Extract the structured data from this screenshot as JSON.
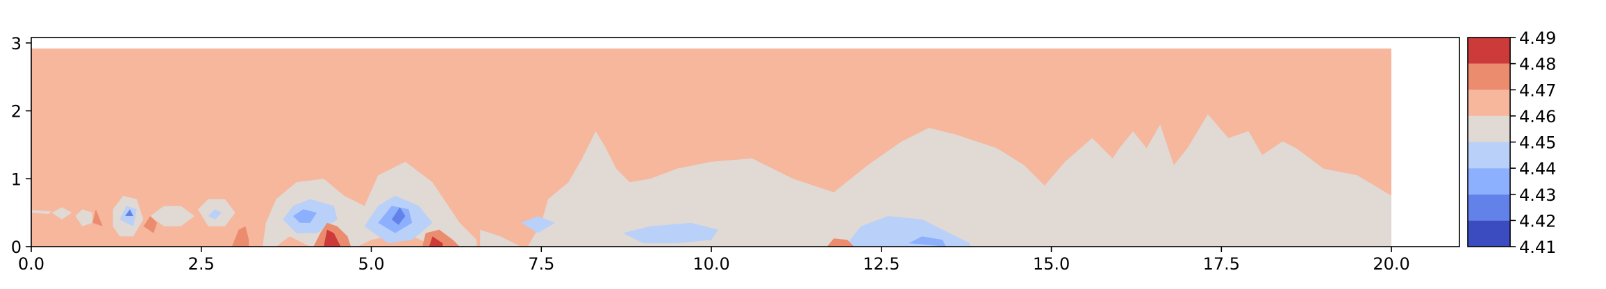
{
  "chart_data": {
    "type": "contour",
    "xlim": [
      0.0,
      21.0
    ],
    "ylim": [
      0.0,
      3.08
    ],
    "x_ticks": [
      "0.0",
      "2.5",
      "5.0",
      "7.5",
      "10.0",
      "12.5",
      "15.0",
      "17.5",
      "20.0"
    ],
    "x_tick_values": [
      0.0,
      2.5,
      5.0,
      7.5,
      10.0,
      12.5,
      15.0,
      17.5,
      20.0
    ],
    "y_ticks": [
      "0",
      "1",
      "2",
      "3"
    ],
    "y_tick_values": [
      0,
      1,
      2,
      3
    ],
    "domain": {
      "x": [
        0.0,
        20.0
      ],
      "y": [
        0.0,
        2.92
      ]
    },
    "colorbar": {
      "levels": [
        4.41,
        4.42,
        4.43,
        4.44,
        4.45,
        4.46,
        4.47,
        4.48,
        4.49
      ],
      "labels": [
        "4.41",
        "4.42",
        "4.43",
        "4.44",
        "4.45",
        "4.46",
        "4.47",
        "4.48",
        "4.49"
      ],
      "colors": [
        "#3b4cc0",
        "#6282ea",
        "#8db0fe",
        "#b9d0f9",
        "#e0d9d4",
        "#f6b79c",
        "#ec8c6e",
        "#cc3a3a"
      ]
    },
    "background_band": "4.46-4.47",
    "regions": [
      {
        "band": "4.45-4.46",
        "polygon": [
          [
            7.3,
            0
          ],
          [
            7.5,
            0.35
          ],
          [
            7.6,
            0.7
          ],
          [
            7.9,
            0.95
          ],
          [
            8.1,
            1.3
          ],
          [
            8.3,
            1.7
          ],
          [
            8.45,
            1.45
          ],
          [
            8.6,
            1.15
          ],
          [
            8.8,
            0.95
          ],
          [
            9.1,
            1.0
          ],
          [
            9.5,
            1.15
          ],
          [
            10.0,
            1.25
          ],
          [
            10.6,
            1.3
          ],
          [
            11.2,
            1.0
          ],
          [
            11.8,
            0.8
          ],
          [
            12.3,
            1.2
          ],
          [
            12.8,
            1.55
          ],
          [
            13.2,
            1.75
          ],
          [
            13.6,
            1.65
          ],
          [
            14.2,
            1.45
          ],
          [
            14.6,
            1.2
          ],
          [
            14.9,
            0.9
          ],
          [
            15.2,
            1.25
          ],
          [
            15.6,
            1.6
          ],
          [
            15.9,
            1.3
          ],
          [
            16.0,
            1.45
          ],
          [
            16.2,
            1.7
          ],
          [
            16.4,
            1.45
          ],
          [
            16.6,
            1.8
          ],
          [
            16.8,
            1.2
          ],
          [
            17.0,
            1.45
          ],
          [
            17.3,
            1.95
          ],
          [
            17.6,
            1.6
          ],
          [
            17.9,
            1.7
          ],
          [
            18.1,
            1.35
          ],
          [
            18.4,
            1.55
          ],
          [
            18.6,
            1.45
          ],
          [
            19.0,
            1.15
          ],
          [
            19.5,
            1.05
          ],
          [
            20.0,
            0.75
          ],
          [
            20.0,
            0
          ]
        ]
      },
      {
        "band": "4.45-4.46",
        "polygon": [
          [
            6.6,
            0
          ],
          [
            6.6,
            0.25
          ],
          [
            6.9,
            0.15
          ],
          [
            7.1,
            0.05
          ],
          [
            7.2,
            0
          ]
        ]
      },
      {
        "band": "4.45-4.46",
        "polygon": [
          [
            3.4,
            0
          ],
          [
            3.45,
            0.35
          ],
          [
            3.6,
            0.7
          ],
          [
            3.9,
            0.95
          ],
          [
            4.3,
            1.0
          ],
          [
            4.6,
            0.75
          ],
          [
            4.9,
            0.6
          ],
          [
            5.1,
            1.05
          ],
          [
            5.5,
            1.25
          ],
          [
            5.9,
            0.95
          ],
          [
            6.3,
            0.35
          ],
          [
            6.55,
            0.1
          ],
          [
            6.55,
            0
          ],
          [
            5.95,
            0
          ],
          [
            5.5,
            0.2
          ],
          [
            5.0,
            0.1
          ],
          [
            4.8,
            0
          ],
          [
            4.1,
            0
          ],
          [
            3.8,
            0.15
          ],
          [
            3.6,
            0
          ]
        ]
      },
      {
        "band": "4.45-4.46",
        "polygon": [
          [
            1.2,
            0.3
          ],
          [
            1.3,
            0.15
          ],
          [
            1.5,
            0.15
          ],
          [
            1.65,
            0.4
          ],
          [
            1.55,
            0.7
          ],
          [
            1.35,
            0.75
          ],
          [
            1.2,
            0.55
          ]
        ]
      },
      {
        "band": "4.45-4.46",
        "polygon": [
          [
            1.75,
            0.45
          ],
          [
            1.95,
            0.6
          ],
          [
            2.2,
            0.6
          ],
          [
            2.4,
            0.45
          ],
          [
            2.2,
            0.3
          ],
          [
            1.95,
            0.3
          ]
        ]
      },
      {
        "band": "4.45-4.46",
        "polygon": [
          [
            2.45,
            0.55
          ],
          [
            2.6,
            0.7
          ],
          [
            2.85,
            0.7
          ],
          [
            3.0,
            0.5
          ],
          [
            2.85,
            0.3
          ],
          [
            2.6,
            0.3
          ]
        ]
      },
      {
        "band": "4.45-4.46",
        "polygon": [
          [
            0.65,
            0.45
          ],
          [
            0.75,
            0.55
          ],
          [
            0.9,
            0.5
          ],
          [
            0.9,
            0.35
          ],
          [
            0.75,
            0.3
          ]
        ]
      },
      {
        "band": "4.45-4.46",
        "polygon": [
          [
            0.3,
            0.5
          ],
          [
            0.45,
            0.58
          ],
          [
            0.6,
            0.5
          ],
          [
            0.45,
            0.4
          ]
        ]
      },
      {
        "band": "4.45-4.46",
        "polygon": [
          [
            0.0,
            0.5
          ],
          [
            0.25,
            0.48
          ],
          [
            0.3,
            0.52
          ],
          [
            0.0,
            0.54
          ]
        ]
      },
      {
        "band": "4.44-4.45",
        "polygon": [
          [
            8.7,
            0.2
          ],
          [
            9.1,
            0.3
          ],
          [
            9.7,
            0.35
          ],
          [
            10.1,
            0.25
          ],
          [
            10.0,
            0.1
          ],
          [
            9.5,
            0.05
          ],
          [
            9.0,
            0.05
          ]
        ]
      },
      {
        "band": "4.44-4.45",
        "polygon": [
          [
            12.0,
            0.05
          ],
          [
            12.2,
            0.3
          ],
          [
            12.6,
            0.45
          ],
          [
            13.1,
            0.4
          ],
          [
            13.5,
            0.2
          ],
          [
            13.8,
            0.05
          ],
          [
            13.8,
            0
          ],
          [
            12.1,
            0
          ]
        ]
      },
      {
        "band": "4.44-4.45",
        "polygon": [
          [
            7.2,
            0.35
          ],
          [
            7.45,
            0.45
          ],
          [
            7.7,
            0.35
          ],
          [
            7.45,
            0.2
          ]
        ]
      },
      {
        "band": "4.44-4.45",
        "polygon": [
          [
            3.7,
            0.4
          ],
          [
            3.85,
            0.6
          ],
          [
            4.1,
            0.7
          ],
          [
            4.45,
            0.6
          ],
          [
            4.5,
            0.4
          ],
          [
            4.2,
            0.2
          ],
          [
            3.9,
            0.2
          ]
        ]
      },
      {
        "band": "4.44-4.45",
        "polygon": [
          [
            4.9,
            0.3
          ],
          [
            5.1,
            0.6
          ],
          [
            5.35,
            0.75
          ],
          [
            5.7,
            0.6
          ],
          [
            5.9,
            0.35
          ],
          [
            5.6,
            0.1
          ],
          [
            5.25,
            0.05
          ]
        ]
      },
      {
        "band": "4.44-4.45",
        "polygon": [
          [
            1.3,
            0.4
          ],
          [
            1.4,
            0.6
          ],
          [
            1.55,
            0.55
          ],
          [
            1.5,
            0.3
          ]
        ]
      },
      {
        "band": "4.44-4.45",
        "polygon": [
          [
            2.6,
            0.45
          ],
          [
            2.7,
            0.55
          ],
          [
            2.8,
            0.5
          ],
          [
            2.7,
            0.4
          ]
        ]
      },
      {
        "band": "4.43-4.44",
        "polygon": [
          [
            3.85,
            0.45
          ],
          [
            4.0,
            0.55
          ],
          [
            4.2,
            0.5
          ],
          [
            4.1,
            0.35
          ],
          [
            3.95,
            0.35
          ]
        ]
      },
      {
        "band": "4.43-4.44",
        "polygon": [
          [
            5.1,
            0.35
          ],
          [
            5.3,
            0.6
          ],
          [
            5.55,
            0.55
          ],
          [
            5.6,
            0.35
          ],
          [
            5.35,
            0.2
          ]
        ]
      },
      {
        "band": "4.43-4.44",
        "polygon": [
          [
            12.9,
            0.05
          ],
          [
            13.1,
            0.15
          ],
          [
            13.4,
            0.1
          ],
          [
            13.45,
            0
          ]
        ]
      },
      {
        "band": "4.42-4.43",
        "polygon": [
          [
            5.3,
            0.4
          ],
          [
            5.42,
            0.58
          ],
          [
            5.5,
            0.45
          ],
          [
            5.4,
            0.32
          ]
        ]
      },
      {
        "band": "4.42-4.43",
        "polygon": [
          [
            1.38,
            0.45
          ],
          [
            1.45,
            0.55
          ],
          [
            1.5,
            0.45
          ]
        ]
      },
      {
        "band": "4.47-4.48",
        "polygon": [
          [
            4.15,
            0
          ],
          [
            4.25,
            0.2
          ],
          [
            4.35,
            0.35
          ],
          [
            4.5,
            0.3
          ],
          [
            4.65,
            0.15
          ],
          [
            4.7,
            0
          ]
        ]
      },
      {
        "band": "4.47-4.48",
        "polygon": [
          [
            5.75,
            0
          ],
          [
            5.8,
            0.2
          ],
          [
            6.0,
            0.25
          ],
          [
            6.2,
            0.1
          ],
          [
            6.3,
            0
          ]
        ]
      },
      {
        "band": "4.47-4.48",
        "polygon": [
          [
            2.95,
            0
          ],
          [
            3.05,
            0.25
          ],
          [
            3.15,
            0.3
          ],
          [
            3.2,
            0.1
          ],
          [
            3.2,
            0
          ]
        ]
      },
      {
        "band": "4.47-4.48",
        "polygon": [
          [
            11.7,
            0
          ],
          [
            11.8,
            0.12
          ],
          [
            12.0,
            0.1
          ],
          [
            12.1,
            0
          ]
        ]
      },
      {
        "band": "4.47-4.48",
        "polygon": [
          [
            0.9,
            0.35
          ],
          [
            0.95,
            0.55
          ],
          [
            1.05,
            0.3
          ]
        ]
      },
      {
        "band": "4.47-4.48",
        "polygon": [
          [
            1.65,
            0.3
          ],
          [
            1.75,
            0.45
          ],
          [
            1.85,
            0.35
          ],
          [
            1.8,
            0.2
          ]
        ]
      },
      {
        "band": "4.48-4.49",
        "polygon": [
          [
            4.3,
            0
          ],
          [
            4.35,
            0.25
          ],
          [
            4.45,
            0.2
          ],
          [
            4.55,
            0
          ]
        ]
      },
      {
        "band": "4.48-4.49",
        "polygon": [
          [
            5.85,
            0
          ],
          [
            5.9,
            0.15
          ],
          [
            6.05,
            0.05
          ],
          [
            6.05,
            0
          ]
        ]
      }
    ]
  }
}
